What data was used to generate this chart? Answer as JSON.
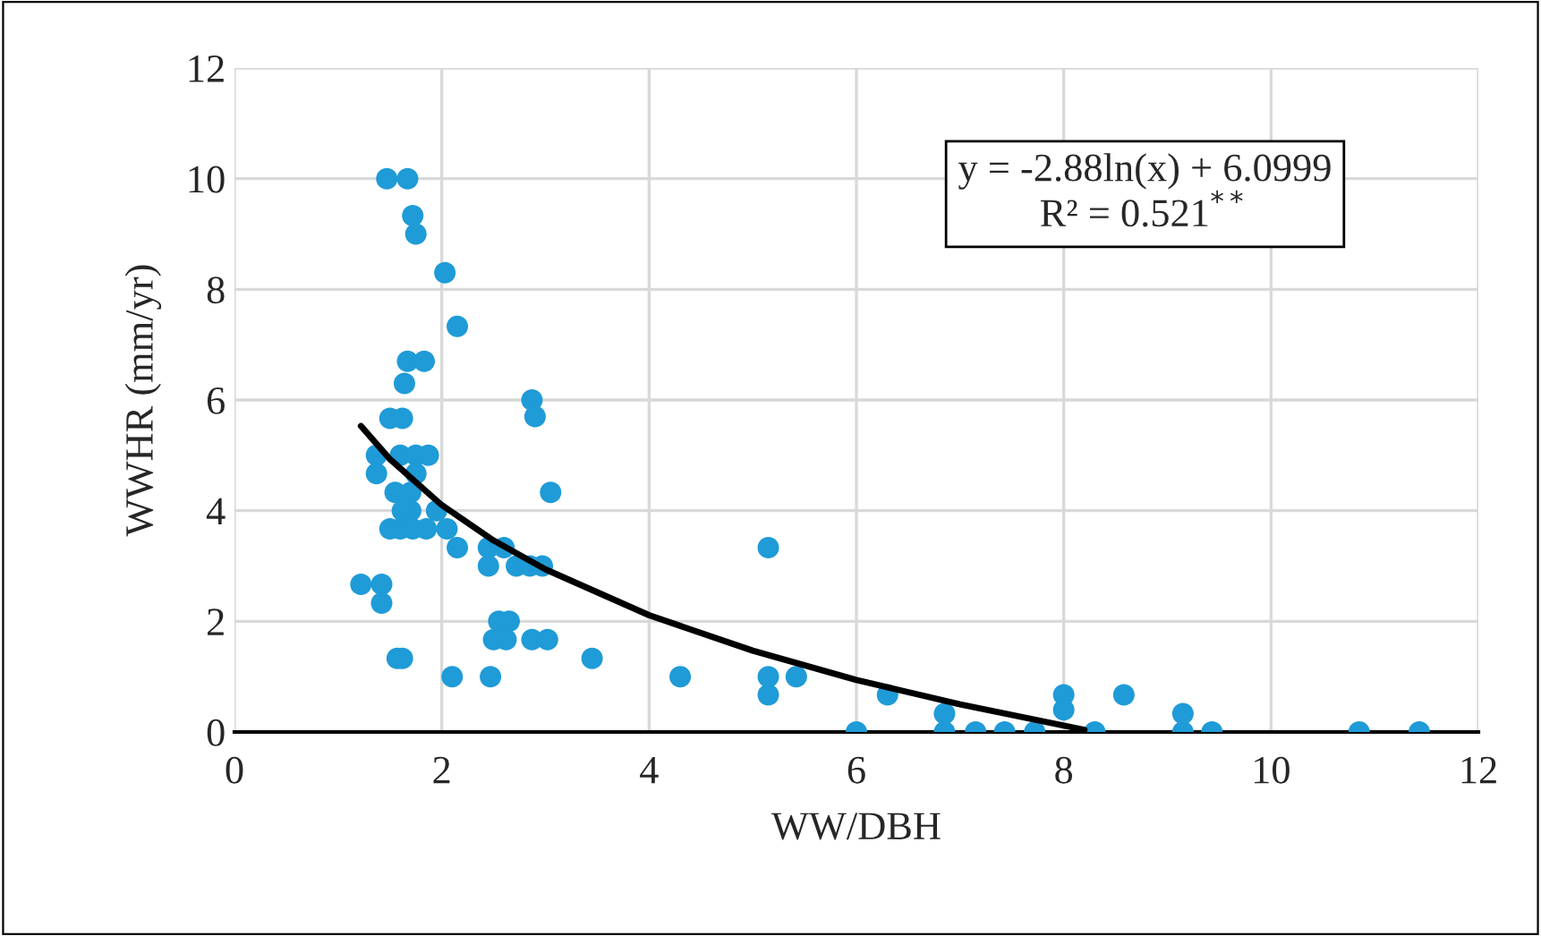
{
  "chart_data": {
    "type": "scatter",
    "xlabel": "WW/DBH",
    "ylabel": "WWHR (mm/yr)",
    "xlim": [
      0,
      12
    ],
    "ylim": [
      0,
      12
    ],
    "xticks": [
      0,
      2,
      4,
      6,
      8,
      10,
      12
    ],
    "yticks": [
      0,
      2,
      4,
      6,
      8,
      10,
      12
    ],
    "grid": true,
    "annotations": [
      "y = -2.88ln(x) + 6.0999",
      "R² = 0.521$^{**}$"
    ],
    "series": [
      {
        "marker": "circle",
        "color": "#1f9bd7",
        "x": [
          1.47,
          1.67,
          1.72,
          1.75,
          2.03,
          2.15,
          1.67,
          1.83,
          1.64,
          1.5,
          1.62,
          2.87,
          2.9,
          1.37,
          1.6,
          1.75,
          1.87,
          1.37,
          1.55,
          1.7,
          1.75,
          1.7,
          1.62,
          1.95,
          3.05,
          1.5,
          1.6,
          1.72,
          1.85,
          2.05,
          2.15,
          2.45,
          2.6,
          2.45,
          2.72,
          2.85,
          2.97,
          1.22,
          1.42,
          1.42,
          2.55,
          2.65,
          2.5,
          2.62,
          2.87,
          3.02,
          3.45,
          1.57,
          1.62,
          2.1,
          2.47,
          4.3,
          5.15,
          5.15,
          5.42,
          5.15,
          6.0,
          6.3,
          6.85,
          6.85,
          7.15,
          7.43,
          7.72,
          8.0,
          8.0,
          8.3,
          8.58,
          9.15,
          9.15,
          9.43,
          10.85,
          11.43
        ],
        "values": [
          10,
          10,
          9.33,
          9.0,
          8.3,
          7.33,
          6.7,
          6.7,
          6.3,
          5.67,
          5.67,
          6.0,
          5.7,
          5.0,
          5.0,
          5.0,
          5.0,
          4.67,
          4.33,
          4.33,
          4.67,
          4.0,
          4.0,
          4.0,
          4.33,
          3.67,
          3.67,
          3.67,
          3.67,
          3.67,
          3.33,
          3.33,
          3.33,
          3.0,
          3.0,
          3.0,
          3.0,
          2.67,
          2.67,
          2.33,
          2.0,
          2.0,
          1.67,
          1.67,
          1.67,
          1.67,
          1.33,
          1.33,
          1.33,
          1.0,
          1.0,
          1.0,
          1.0,
          0.67,
          1.0,
          3.33,
          0,
          0.67,
          0.33,
          0,
          0,
          0,
          0,
          0.67,
          0.4,
          0,
          0.67,
          0.33,
          0,
          0,
          0,
          0
        ]
      },
      {
        "type": "line",
        "color": "#000000",
        "line_style": "solid",
        "x": [
          1.22,
          1.5,
          2,
          2.5,
          3,
          4,
          5,
          6,
          7,
          8.2
        ],
        "values": [
          5.53,
          4.93,
          4.1,
          3.46,
          2.94,
          2.11,
          1.47,
          0.94,
          0.5,
          0.04
        ]
      }
    ]
  }
}
